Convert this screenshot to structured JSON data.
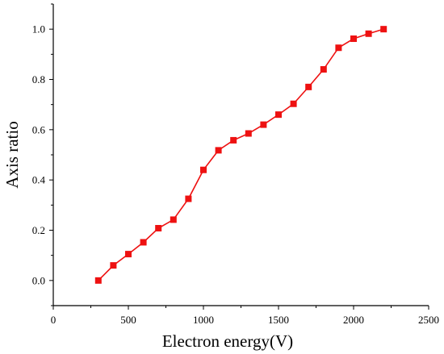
{
  "chart_data": {
    "type": "line",
    "xlabel": "Electron  energy(V)",
    "ylabel": "Axis ratio",
    "xlim": [
      0,
      2500
    ],
    "ylim": [
      -0.1,
      1.1
    ],
    "xticks": [
      0,
      500,
      1000,
      1500,
      2000,
      2500
    ],
    "yticks": [
      0.0,
      0.2,
      0.4,
      0.6,
      0.8,
      1.0
    ],
    "ytick_labels": [
      "0.0",
      "0.2",
      "0.4",
      "0.6",
      "0.8",
      "1.0"
    ],
    "grid": false,
    "series": [
      {
        "color": "#ee1111",
        "marker": "square",
        "x": [
          300,
          400,
          500,
          600,
          700,
          800,
          900,
          1000,
          1100,
          1200,
          1300,
          1400,
          1500,
          1600,
          1700,
          1800,
          1900,
          2000,
          2100,
          2200
        ],
        "y": [
          0.0,
          0.06,
          0.105,
          0.152,
          0.208,
          0.242,
          0.325,
          0.44,
          0.518,
          0.558,
          0.585,
          0.62,
          0.66,
          0.703,
          0.77,
          0.84,
          0.926,
          0.962,
          0.982,
          1.0
        ]
      }
    ]
  }
}
